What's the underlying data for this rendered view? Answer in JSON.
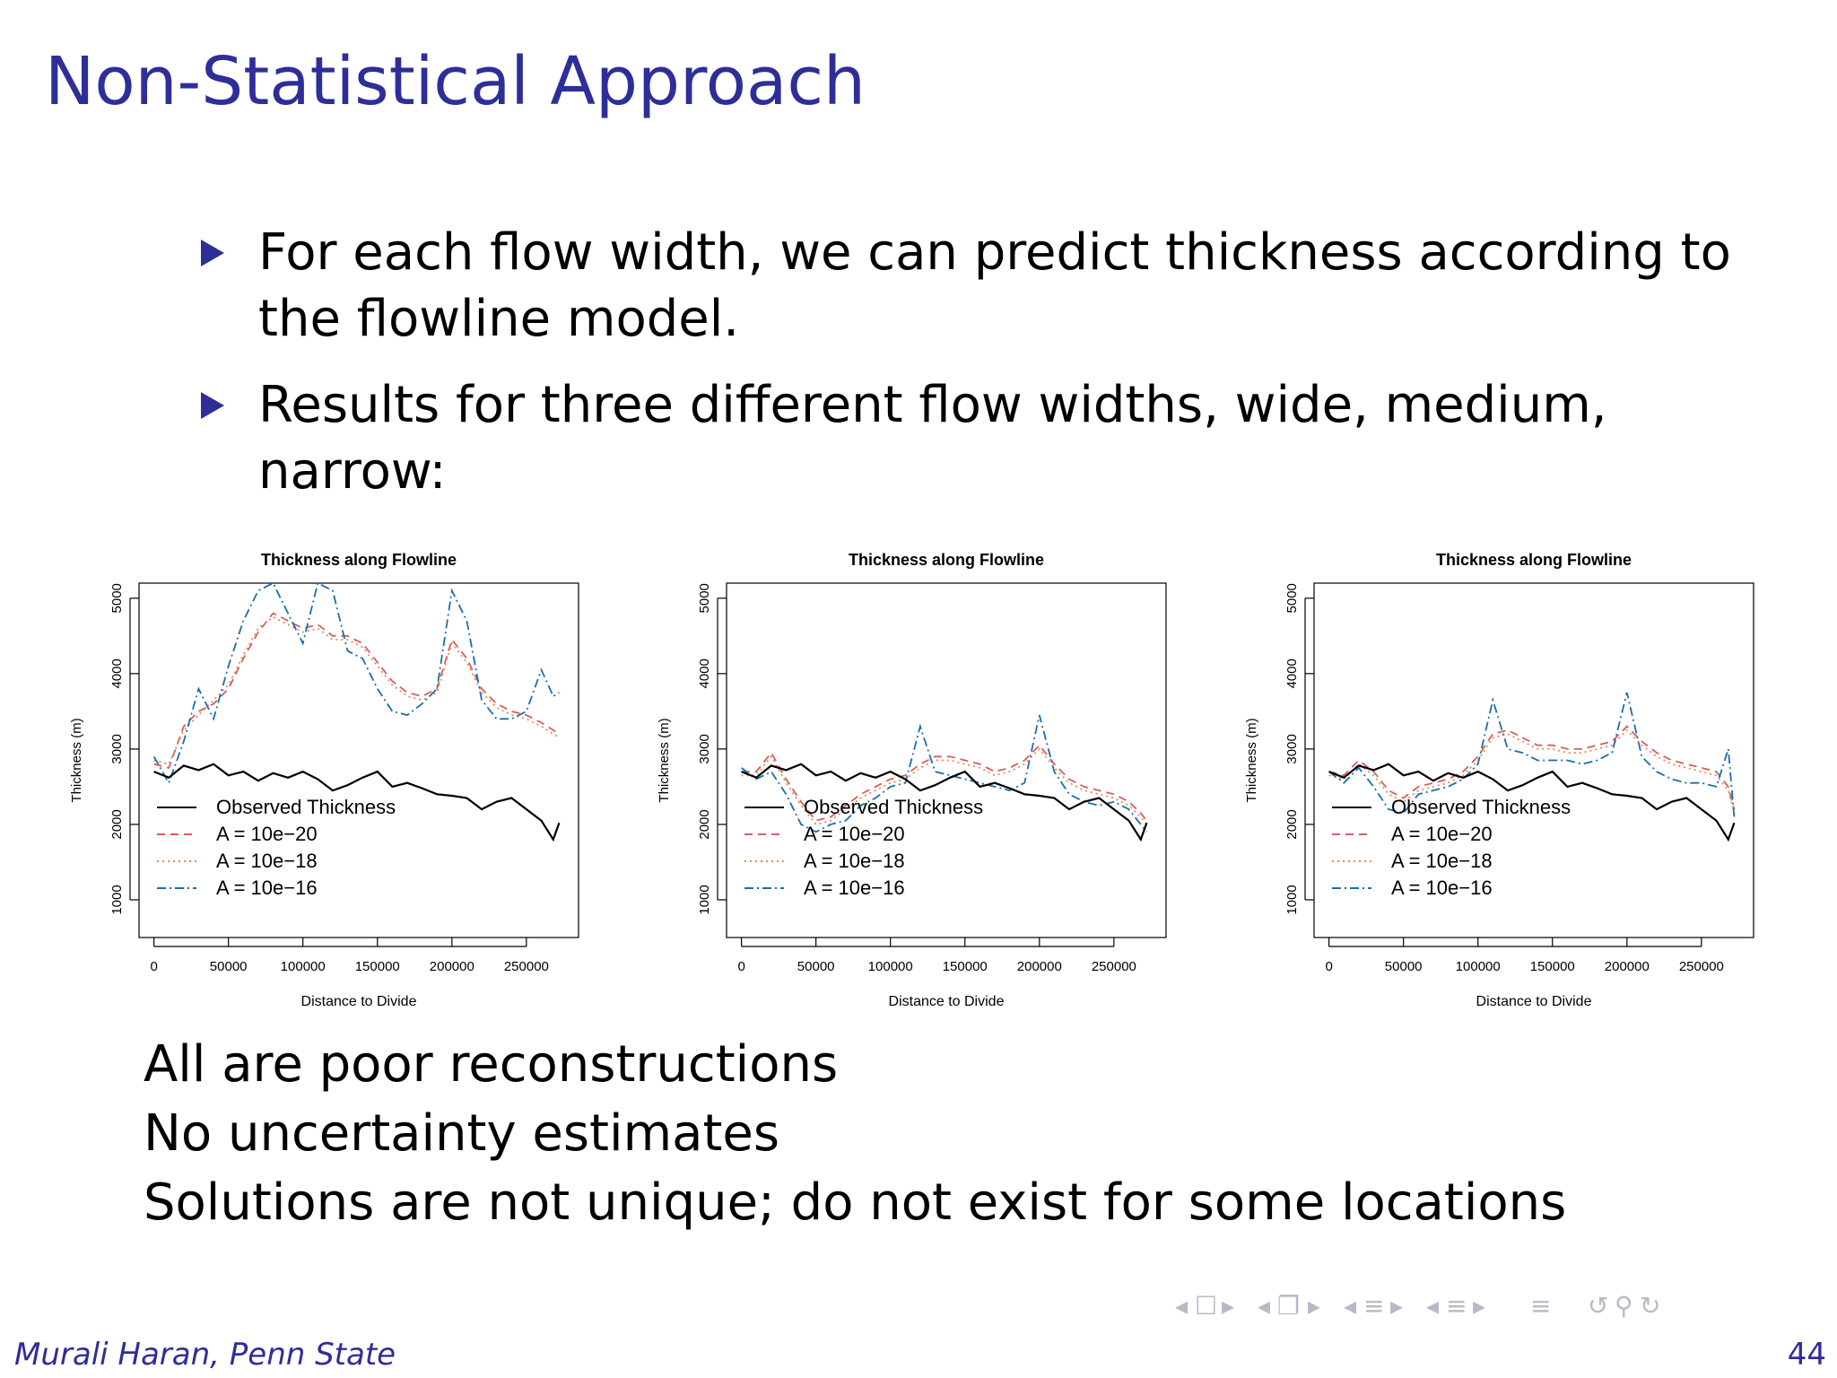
{
  "slide": {
    "title": "Non-Statistical Approach",
    "bullets": [
      "For each flow width, we can predict thickness according to the flowline model.",
      "Results for three different flow widths, wide, medium, narrow:"
    ],
    "conclusions": [
      "All are poor reconstructions",
      "No uncertainty estimates",
      "Solutions are not unique; do not exist for some locations"
    ],
    "footer": {
      "author": "Murali Haran, Penn State",
      "page": "44"
    }
  },
  "colors": {
    "title": "#2e2e99",
    "observed": "#000000",
    "a20": "#d45f5f",
    "a18": "#e08a5a",
    "a16": "#1a6fa8"
  },
  "chart_data": [
    {
      "type": "line",
      "title": "Thickness along Flowline",
      "xlabel": "Distance to Divide",
      "ylabel": "Thickness (m)",
      "xlim": [
        -10000,
        285000
      ],
      "ylim": [
        500,
        5200
      ],
      "xticks": [
        0,
        50000,
        100000,
        150000,
        200000,
        250000
      ],
      "yticks": [
        1000,
        2000,
        3000,
        4000,
        5000
      ],
      "legend_position": "bottom-left",
      "series": [
        {
          "name": "Observed Thickness",
          "style": "solid",
          "x": [
            0,
            10000,
            20000,
            30000,
            40000,
            50000,
            60000,
            70000,
            80000,
            90000,
            100000,
            110000,
            120000,
            130000,
            140000,
            150000,
            160000,
            170000,
            180000,
            190000,
            200000,
            210000,
            220000,
            230000,
            240000,
            250000,
            260000,
            268000,
            272000
          ],
          "values": [
            2700,
            2620,
            2780,
            2720,
            2800,
            2650,
            2700,
            2580,
            2680,
            2620,
            2700,
            2600,
            2450,
            2520,
            2620,
            2700,
            2500,
            2550,
            2480,
            2400,
            2380,
            2350,
            2200,
            2300,
            2350,
            2200,
            2050,
            1800,
            2020
          ]
        },
        {
          "name": "A = 10e−20",
          "style": "dashed",
          "x": [
            0,
            10000,
            20000,
            30000,
            40000,
            50000,
            60000,
            70000,
            80000,
            90000,
            100000,
            110000,
            120000,
            130000,
            140000,
            150000,
            160000,
            170000,
            180000,
            190000,
            200000,
            210000,
            220000,
            230000,
            240000,
            250000,
            260000,
            268000,
            272000
          ],
          "values": [
            2800,
            2750,
            3300,
            3500,
            3600,
            3800,
            4200,
            4550,
            4800,
            4700,
            4600,
            4650,
            4500,
            4500,
            4400,
            4150,
            3900,
            3750,
            3700,
            3800,
            4450,
            4200,
            3800,
            3600,
            3500,
            3450,
            3350,
            3250,
            3200
          ]
        },
        {
          "name": "A = 10e−18",
          "style": "dotted",
          "x": [
            0,
            10000,
            20000,
            30000,
            40000,
            50000,
            60000,
            70000,
            80000,
            90000,
            100000,
            110000,
            120000,
            130000,
            140000,
            150000,
            160000,
            170000,
            180000,
            190000,
            200000,
            210000,
            220000,
            230000,
            240000,
            250000,
            260000,
            268000,
            272000
          ],
          "values": [
            2850,
            2800,
            3250,
            3450,
            3650,
            3850,
            4250,
            4600,
            4750,
            4650,
            4550,
            4600,
            4450,
            4450,
            4350,
            4100,
            3850,
            3700,
            3650,
            3750,
            4400,
            4150,
            3750,
            3550,
            3450,
            3400,
            3300,
            3200,
            3150
          ]
        },
        {
          "name": "A = 10e−16",
          "style": "dotdash",
          "x": [
            0,
            10000,
            20000,
            30000,
            40000,
            50000,
            60000,
            70000,
            80000,
            90000,
            100000,
            110000,
            120000,
            130000,
            140000,
            150000,
            160000,
            170000,
            180000,
            190000,
            200000,
            210000,
            220000,
            230000,
            240000,
            250000,
            260000,
            268000,
            272000
          ],
          "values": [
            2900,
            2550,
            3100,
            3800,
            3400,
            4100,
            4700,
            5100,
            5200,
            4800,
            4400,
            5200,
            5100,
            4300,
            4200,
            3800,
            3500,
            3450,
            3600,
            3800,
            5100,
            4700,
            3650,
            3400,
            3400,
            3500,
            4050,
            3700,
            3750
          ]
        }
      ]
    },
    {
      "type": "line",
      "title": "Thickness along Flowline",
      "xlabel": "Distance to Divide",
      "ylabel": "Thickness (m)",
      "xlim": [
        -10000,
        285000
      ],
      "ylim": [
        500,
        5200
      ],
      "xticks": [
        0,
        50000,
        100000,
        150000,
        200000,
        250000
      ],
      "yticks": [
        1000,
        2000,
        3000,
        4000,
        5000
      ],
      "legend_position": "bottom-left",
      "series": [
        {
          "name": "Observed Thickness",
          "style": "solid",
          "x": [
            0,
            10000,
            20000,
            30000,
            40000,
            50000,
            60000,
            70000,
            80000,
            90000,
            100000,
            110000,
            120000,
            130000,
            140000,
            150000,
            160000,
            170000,
            180000,
            190000,
            200000,
            210000,
            220000,
            230000,
            240000,
            250000,
            260000,
            268000,
            272000
          ],
          "values": [
            2700,
            2620,
            2780,
            2720,
            2800,
            2650,
            2700,
            2580,
            2680,
            2620,
            2700,
            2600,
            2450,
            2520,
            2620,
            2700,
            2500,
            2550,
            2480,
            2400,
            2380,
            2350,
            2200,
            2300,
            2350,
            2200,
            2050,
            1800,
            2020
          ]
        },
        {
          "name": "A = 10e−20",
          "style": "dashed",
          "x": [
            0,
            10000,
            20000,
            30000,
            40000,
            50000,
            60000,
            70000,
            80000,
            90000,
            100000,
            110000,
            120000,
            130000,
            140000,
            150000,
            160000,
            170000,
            180000,
            190000,
            200000,
            210000,
            220000,
            230000,
            240000,
            250000,
            260000,
            268000,
            272000
          ],
          "values": [
            2700,
            2700,
            2950,
            2600,
            2300,
            2050,
            2100,
            2250,
            2400,
            2500,
            2600,
            2650,
            2800,
            2900,
            2900,
            2850,
            2800,
            2700,
            2750,
            2850,
            3050,
            2800,
            2600,
            2500,
            2450,
            2400,
            2300,
            2150,
            2050
          ]
        },
        {
          "name": "A = 10e−18",
          "style": "dotted",
          "x": [
            0,
            10000,
            20000,
            30000,
            40000,
            50000,
            60000,
            70000,
            80000,
            90000,
            100000,
            110000,
            120000,
            130000,
            140000,
            150000,
            160000,
            170000,
            180000,
            190000,
            200000,
            210000,
            220000,
            230000,
            240000,
            250000,
            260000,
            268000,
            272000
          ],
          "values": [
            2650,
            2650,
            2900,
            2550,
            2250,
            2000,
            2050,
            2200,
            2350,
            2450,
            2550,
            2600,
            2750,
            2850,
            2850,
            2800,
            2750,
            2650,
            2700,
            2800,
            3000,
            2750,
            2550,
            2450,
            2400,
            2350,
            2250,
            2100,
            2000
          ]
        },
        {
          "name": "A = 10e−16",
          "style": "dotdash",
          "x": [
            0,
            10000,
            20000,
            30000,
            40000,
            50000,
            60000,
            70000,
            80000,
            90000,
            100000,
            110000,
            120000,
            130000,
            140000,
            150000,
            160000,
            170000,
            180000,
            190000,
            200000,
            210000,
            220000,
            230000,
            240000,
            250000,
            260000,
            268000,
            272000
          ],
          "values": [
            2750,
            2600,
            2700,
            2400,
            2000,
            1900,
            2000,
            2050,
            2250,
            2350,
            2500,
            2550,
            3300,
            2700,
            2650,
            2600,
            2550,
            2500,
            2450,
            2550,
            3450,
            2700,
            2400,
            2300,
            2250,
            2300,
            2200,
            2000,
            1900
          ]
        }
      ]
    },
    {
      "type": "line",
      "title": "Thickness along Flowline",
      "xlabel": "Distance to Divide",
      "ylabel": "Thickness (m)",
      "xlim": [
        -10000,
        285000
      ],
      "ylim": [
        500,
        5200
      ],
      "xticks": [
        0,
        50000,
        100000,
        150000,
        200000,
        250000
      ],
      "yticks": [
        1000,
        2000,
        3000,
        4000,
        5000
      ],
      "legend_position": "bottom-left",
      "series": [
        {
          "name": "Observed Thickness",
          "style": "solid",
          "x": [
            0,
            10000,
            20000,
            30000,
            40000,
            50000,
            60000,
            70000,
            80000,
            90000,
            100000,
            110000,
            120000,
            130000,
            140000,
            150000,
            160000,
            170000,
            180000,
            190000,
            200000,
            210000,
            220000,
            230000,
            240000,
            250000,
            260000,
            268000,
            272000
          ],
          "values": [
            2700,
            2620,
            2780,
            2720,
            2800,
            2650,
            2700,
            2580,
            2680,
            2620,
            2700,
            2600,
            2450,
            2520,
            2620,
            2700,
            2500,
            2550,
            2480,
            2400,
            2380,
            2350,
            2200,
            2300,
            2350,
            2200,
            2050,
            1800,
            2020
          ]
        },
        {
          "name": "A = 10e−20",
          "style": "dashed",
          "x": [
            0,
            10000,
            20000,
            30000,
            40000,
            50000,
            60000,
            70000,
            80000,
            90000,
            100000,
            110000,
            120000,
            130000,
            140000,
            150000,
            160000,
            170000,
            180000,
            190000,
            200000,
            210000,
            220000,
            230000,
            240000,
            250000,
            260000,
            268000,
            272000
          ],
          "values": [
            2700,
            2650,
            2850,
            2700,
            2450,
            2350,
            2500,
            2550,
            2600,
            2700,
            2900,
            3200,
            3250,
            3150,
            3050,
            3050,
            3000,
            3000,
            3050,
            3100,
            3300,
            3100,
            2950,
            2850,
            2800,
            2750,
            2700,
            2500,
            2200
          ]
        },
        {
          "name": "A = 10e−18",
          "style": "dotted",
          "x": [
            0,
            10000,
            20000,
            30000,
            40000,
            50000,
            60000,
            70000,
            80000,
            90000,
            100000,
            110000,
            120000,
            130000,
            140000,
            150000,
            160000,
            170000,
            180000,
            190000,
            200000,
            210000,
            220000,
            230000,
            240000,
            250000,
            260000,
            268000,
            272000
          ],
          "values": [
            2650,
            2600,
            2800,
            2650,
            2400,
            2300,
            2450,
            2500,
            2550,
            2650,
            2850,
            3150,
            3200,
            3100,
            3000,
            3000,
            2950,
            2950,
            3000,
            3050,
            3250,
            3050,
            2900,
            2800,
            2750,
            2700,
            2650,
            2450,
            2150
          ]
        },
        {
          "name": "A = 10e−16",
          "style": "dotdash",
          "x": [
            0,
            10000,
            20000,
            30000,
            40000,
            50000,
            60000,
            70000,
            80000,
            90000,
            100000,
            110000,
            120000,
            130000,
            140000,
            150000,
            160000,
            170000,
            180000,
            190000,
            200000,
            210000,
            220000,
            230000,
            240000,
            250000,
            260000,
            268000,
            272000
          ],
          "values": [
            2700,
            2550,
            2750,
            2500,
            2200,
            2150,
            2400,
            2450,
            2500,
            2600,
            2800,
            3650,
            3000,
            2950,
            2850,
            2850,
            2850,
            2800,
            2850,
            2950,
            3750,
            2900,
            2700,
            2600,
            2550,
            2550,
            2500,
            3000,
            2100
          ]
        }
      ]
    }
  ]
}
